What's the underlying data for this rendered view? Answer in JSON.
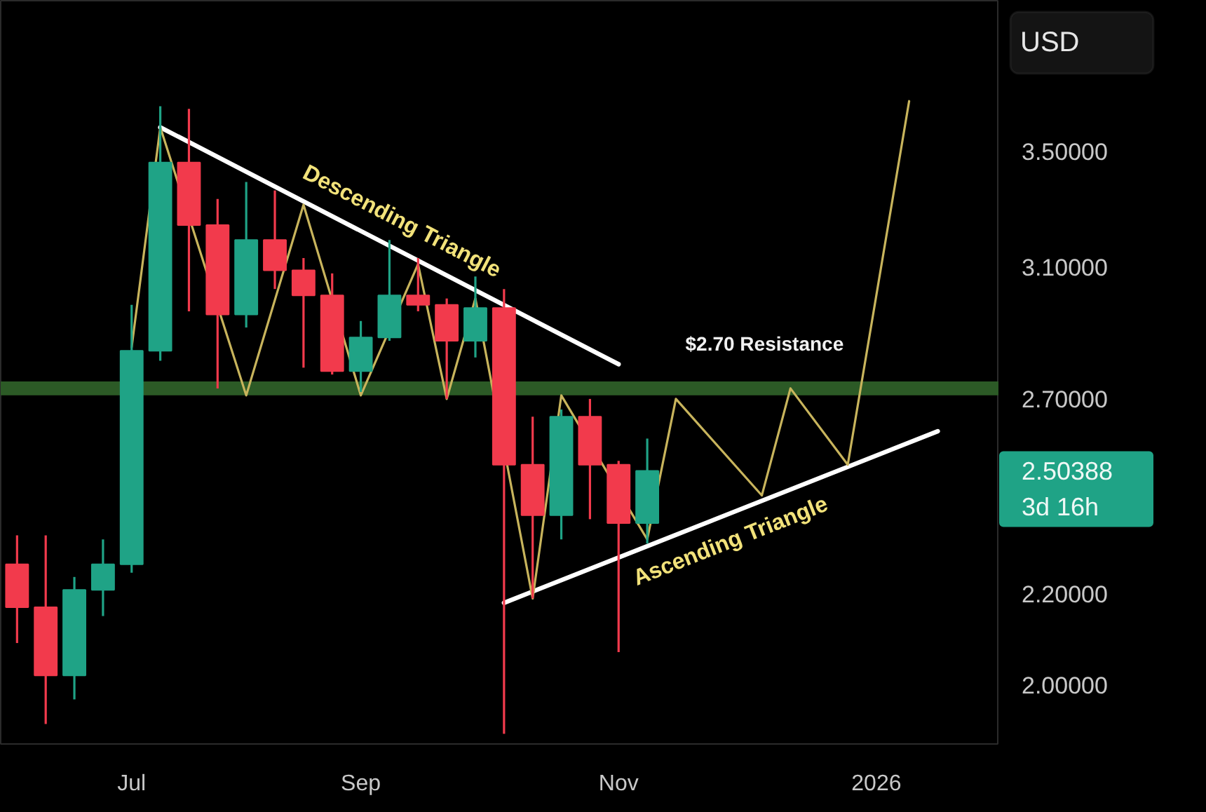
{
  "chart_data": {
    "type": "candlestick",
    "ylabel": "USD",
    "x": [
      "2025-06-09",
      "2025-06-16",
      "2025-06-23",
      "2025-06-30",
      "2025-07-07",
      "2025-07-14",
      "2025-07-21",
      "2025-07-28",
      "2025-08-04",
      "2025-08-11",
      "2025-08-18",
      "2025-08-25",
      "2025-09-01",
      "2025-09-08",
      "2025-09-15",
      "2025-09-22",
      "2025-09-29",
      "2025-10-06",
      "2025-10-13",
      "2025-10-20",
      "2025-10-27",
      "2025-11-03",
      "2025-11-10"
    ],
    "ohlc": [
      [
        2.27,
        2.34,
        2.09,
        2.17
      ],
      [
        2.17,
        2.34,
        1.92,
        2.02
      ],
      [
        2.02,
        2.24,
        1.97,
        2.21
      ],
      [
        2.21,
        2.33,
        2.15,
        2.27
      ],
      [
        2.27,
        2.98,
        2.25,
        2.84
      ],
      [
        2.84,
        3.67,
        2.81,
        3.46
      ],
      [
        3.46,
        3.66,
        2.96,
        3.24
      ],
      [
        3.24,
        3.33,
        2.73,
        2.95
      ],
      [
        2.95,
        3.39,
        2.91,
        3.19
      ],
      [
        3.19,
        3.36,
        3.03,
        3.09
      ],
      [
        3.09,
        3.13,
        2.79,
        3.01
      ],
      [
        3.01,
        3.08,
        2.77,
        2.78
      ],
      [
        2.78,
        2.93,
        2.72,
        2.88
      ],
      [
        2.88,
        3.19,
        2.87,
        3.01
      ],
      [
        3.01,
        3.13,
        2.96,
        2.98
      ],
      [
        2.98,
        3.0,
        2.7,
        2.87
      ],
      [
        2.87,
        3.07,
        2.82,
        2.97
      ],
      [
        2.97,
        3.03,
        1.9,
        2.52
      ],
      [
        2.52,
        2.65,
        2.19,
        2.39
      ],
      [
        2.39,
        2.67,
        2.33,
        2.65
      ],
      [
        2.65,
        2.7,
        2.38,
        2.52
      ],
      [
        2.52,
        2.53,
        2.07,
        2.37
      ],
      [
        2.37,
        2.59,
        2.32,
        2.50388
      ]
    ],
    "colors": [
      "#f23a4c",
      "#f23a4c",
      "#1fa386",
      "#1fa386",
      "#1fa386",
      "#1fa386",
      "#f23a4c",
      "#f23a4c",
      "#1fa386",
      "#f23a4c",
      "#f23a4c",
      "#f23a4c",
      "#1fa386",
      "#1fa386",
      "#f23a4c",
      "#f23a4c",
      "#1fa386",
      "#f23a4c",
      "#f23a4c",
      "#1fa386",
      "#f23a4c",
      "#f23a4c",
      "#1fa386"
    ],
    "series": [
      {
        "type": "line",
        "name": "Descending Triangle",
        "color": "#ffffff",
        "x": [
          "2025-07-14",
          "2025-11-03"
        ],
        "values": [
          3.59,
          2.8
        ]
      },
      {
        "type": "line",
        "name": "Ascending Triangle",
        "color": "#ffffff",
        "x": [
          "2025-10-06",
          "2026-01-20"
        ],
        "values": [
          2.18,
          2.61
        ]
      },
      {
        "type": "line",
        "color": "#c8b45c",
        "x": [
          "2025-07-07",
          "2025-07-14",
          "2025-08-04",
          "2025-08-18",
          "2025-09-01",
          "2025-09-15",
          "2025-09-22",
          "2025-09-29",
          "2025-10-13",
          "2025-10-20",
          "2025-11-10",
          "2025-11-17",
          "2025-12-08",
          "2025-12-15",
          "2025-12-29",
          "2026-01-13"
        ],
        "values": [
          2.85,
          3.59,
          2.71,
          3.31,
          2.71,
          3.11,
          2.7,
          3.0,
          2.19,
          2.71,
          2.33,
          2.7,
          2.44,
          2.73,
          2.52,
          3.69
        ]
      }
    ],
    "bands": [
      {
        "axis": "y",
        "from": 2.71,
        "to": 2.75,
        "label": "$2.70 Resistance",
        "color": "#2c5a26"
      }
    ],
    "annotations": [
      "2.50388",
      "3d 16h"
    ],
    "log": true,
    "xlim": [
      "2025-06-05",
      "2026-02-04"
    ],
    "xticks": [
      {
        "value": "2025-07-07",
        "label": "Jul"
      },
      {
        "value": "2025-09-01",
        "label": "Sep"
      },
      {
        "value": "2025-11-03",
        "label": "Nov"
      },
      {
        "value": "2026-01-05",
        "label": "2026"
      }
    ],
    "ylim": [
      1.88,
      4.1
    ],
    "yticks": [
      {
        "value": 2.0,
        "label": "2.00000"
      },
      {
        "value": 2.2,
        "label": "2.20000"
      },
      {
        "value": 2.7,
        "label": "2.70000"
      },
      {
        "value": 3.1,
        "label": "3.10000"
      },
      {
        "value": 3.5,
        "label": "3.50000"
      }
    ]
  }
}
